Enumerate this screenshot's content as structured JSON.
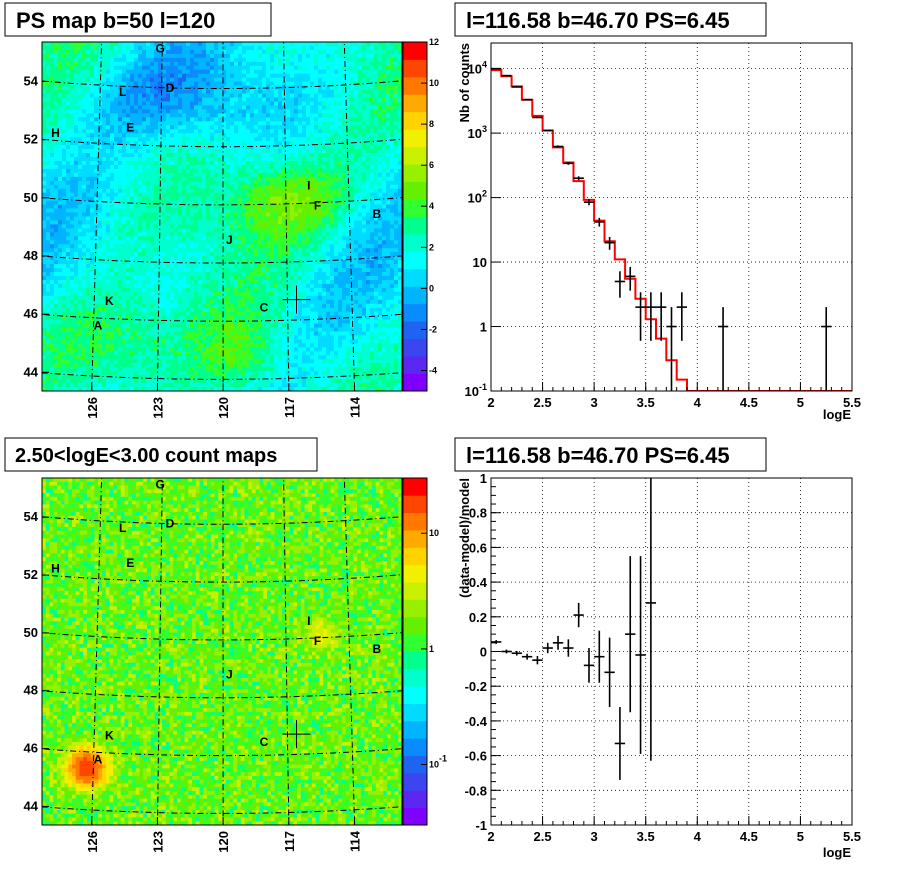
{
  "chart_data": [
    {
      "type": "heatmap",
      "title": "PS map b=50 l=120",
      "x_ticks": [
        "126",
        "123",
        "120",
        "117",
        "114"
      ],
      "y_ticks": [
        "54",
        "52",
        "50",
        "48",
        "46",
        "44"
      ],
      "colorbar": {
        "scale": "linear",
        "range": [
          -5,
          12
        ],
        "ticks": [
          "12",
          "10",
          "8",
          "6",
          "4",
          "2",
          "0",
          "-2",
          "-4"
        ],
        "tick_values": [
          12,
          10,
          8,
          6,
          4,
          2,
          0,
          -2,
          -4
        ]
      },
      "sources": [
        {
          "label": "G",
          "x": 123.1,
          "y": 55.35
        },
        {
          "label": "L",
          "x": 124.9,
          "y": 53.8
        },
        {
          "label": "D",
          "x": 122.6,
          "y": 54.0
        },
        {
          "label": "H",
          "x": 128.1,
          "y": 52.25
        },
        {
          "label": "E",
          "x": 124.5,
          "y": 52.6
        },
        {
          "label": "I",
          "x": 115.9,
          "y": 50.6
        },
        {
          "label": "F",
          "x": 115.5,
          "y": 49.9
        },
        {
          "label": "B",
          "x": 112.7,
          "y": 49.5
        },
        {
          "label": "J",
          "x": 119.7,
          "y": 48.8
        },
        {
          "label": "K",
          "x": 125.3,
          "y": 46.6
        },
        {
          "label": "C",
          "x": 118.1,
          "y": 46.45
        },
        {
          "label": "A",
          "x": 125.8,
          "y": 45.75
        }
      ],
      "marker": {
        "x": 116.58,
        "y": 46.7
      }
    },
    {
      "type": "line",
      "title": "l=116.58 b=46.70 PS=6.45",
      "xlabel": "logE",
      "ylabel": "Nb of counts",
      "xlim": [
        2,
        5.5
      ],
      "ylim": [
        0.1,
        25000
      ],
      "yscale": "log",
      "grid": true,
      "x_ticks": [
        "2",
        "2.5",
        "3",
        "3.5",
        "4",
        "4.5",
        "5",
        "5.5"
      ],
      "y_ticks": [
        "10^{4}",
        "10^{3}",
        "10^{2}",
        "10",
        "1",
        "10^{-1}"
      ],
      "model_bins": {
        "edges": [
          2.0,
          2.1,
          2.2,
          2.3,
          2.4,
          2.5,
          2.6,
          2.7,
          2.8,
          2.9,
          3.0,
          3.1,
          3.2,
          3.3,
          3.4,
          3.5,
          3.6,
          3.7,
          3.8,
          3.9,
          4.0,
          5.5
        ],
        "values": [
          9500,
          7600,
          5300,
          3300,
          1850,
          1100,
          600,
          350,
          180,
          92,
          44,
          21,
          11,
          5.5,
          2.7,
          1.3,
          0.65,
          0.3,
          0.15,
          0.1,
          0.1
        ]
      },
      "data_points": {
        "x": [
          2.05,
          2.15,
          2.25,
          2.35,
          2.45,
          2.55,
          2.65,
          2.75,
          2.85,
          2.95,
          3.05,
          3.15,
          3.25,
          3.35,
          3.45,
          3.55,
          3.65,
          3.75,
          3.85,
          4.25,
          5.25
        ],
        "y": [
          10000,
          7800,
          5200,
          3300,
          1750,
          1100,
          620,
          340,
          200,
          85,
          42,
          20,
          5,
          6,
          2,
          2,
          2,
          1,
          2,
          1,
          1
        ],
        "err_low": [
          100,
          90,
          70,
          58,
          42,
          33,
          25,
          18,
          14,
          9,
          6.5,
          4.5,
          2.2,
          2.4,
          1.4,
          1.4,
          1.4,
          0.99,
          1.4,
          0.99,
          0.99
        ],
        "err_high": [
          100,
          90,
          70,
          58,
          42,
          33,
          25,
          18,
          14,
          9,
          6.5,
          4.5,
          2.2,
          2.4,
          1.4,
          1.4,
          1.4,
          1.0,
          1.4,
          1.0,
          1.0
        ]
      },
      "model_color": "#ff0000"
    },
    {
      "type": "heatmap",
      "title": "2.50<logE<3.00 count maps",
      "x_ticks": [
        "126",
        "123",
        "120",
        "117",
        "114"
      ],
      "y_ticks": [
        "54",
        "52",
        "50",
        "48",
        "46",
        "44"
      ],
      "colorbar": {
        "scale": "log",
        "range": [
          0.03,
          30
        ],
        "ticks": [
          "10",
          "1",
          "10^{-1}"
        ],
        "tick_values": [
          10,
          1,
          0.1
        ]
      },
      "sources": [
        {
          "label": "G",
          "x": 123.1,
          "y": 55.35
        },
        {
          "label": "L",
          "x": 124.9,
          "y": 53.8
        },
        {
          "label": "D",
          "x": 122.6,
          "y": 54.0
        },
        {
          "label": "H",
          "x": 128.1,
          "y": 52.25
        },
        {
          "label": "E",
          "x": 124.5,
          "y": 52.6
        },
        {
          "label": "I",
          "x": 115.9,
          "y": 50.6
        },
        {
          "label": "F",
          "x": 115.5,
          "y": 49.9
        },
        {
          "label": "B",
          "x": 112.7,
          "y": 49.5
        },
        {
          "label": "J",
          "x": 119.7,
          "y": 48.8
        },
        {
          "label": "K",
          "x": 125.3,
          "y": 46.6
        },
        {
          "label": "C",
          "x": 118.1,
          "y": 46.45
        },
        {
          "label": "A",
          "x": 125.8,
          "y": 45.75
        }
      ],
      "marker": {
        "x": 116.58,
        "y": 46.7
      }
    },
    {
      "type": "scatter",
      "title": "l=116.58 b=46.70 PS=6.45",
      "xlabel": "logE",
      "ylabel": "(data-model)/model",
      "xlim": [
        2,
        5.5
      ],
      "ylim": [
        -1,
        1
      ],
      "grid": true,
      "x_ticks": [
        "2",
        "2.5",
        "3",
        "3.5",
        "4",
        "4.5",
        "5",
        "5.5"
      ],
      "y_ticks": [
        "1",
        "0.8",
        "0.6",
        "0.4",
        "0.2",
        "0",
        "-0.2",
        "-0.4",
        "-0.6",
        "-0.8",
        "-1"
      ],
      "points": {
        "x": [
          2.05,
          2.15,
          2.25,
          2.35,
          2.45,
          2.55,
          2.65,
          2.75,
          2.85,
          2.95,
          3.05,
          3.15,
          3.25,
          3.35,
          3.45,
          3.55
        ],
        "y": [
          0.055,
          0.0,
          -0.01,
          -0.03,
          -0.05,
          0.02,
          0.05,
          0.02,
          0.21,
          -0.08,
          -0.03,
          -0.12,
          -0.53,
          0.1,
          -0.02,
          0.28
        ],
        "err": [
          0.011,
          0.011,
          0.013,
          0.017,
          0.024,
          0.03,
          0.04,
          0.05,
          0.07,
          0.1,
          0.15,
          0.2,
          0.21,
          0.45,
          0.57,
          0.91
        ]
      }
    }
  ]
}
